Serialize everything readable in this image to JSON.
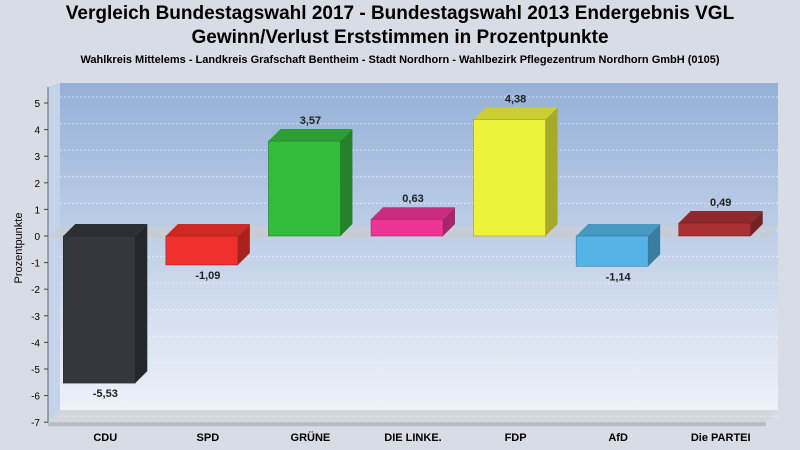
{
  "header": {
    "title_line1": "Vergleich Bundestagswahl 2017 - Bundestagswahl 2013 Endergebnis VGL",
    "title_line2": "Gewinn/Verlust Erststimmen in Prozentpunkte",
    "subtitle": "Wahlkreis Mittelems - Landkreis Grafschaft Bentheim - Stadt Nordhorn - Wahlbezirk Pflegezentrum Nordhorn GmbH (0105)"
  },
  "chart_data": {
    "type": "bar",
    "title": "Vergleich Bundestagswahl 2017 - Bundestagswahl 2013 Endergebnis VGL",
    "subtitle": "Gewinn/Verlust Erststimmen in Prozentpunkte",
    "xlabel": "",
    "ylabel": "Prozentpunkte",
    "ylim": [
      -7,
      5
    ],
    "yticks": [
      5,
      4,
      3,
      2,
      1,
      0,
      -1,
      -2,
      -3,
      -4,
      -5,
      -6,
      -7
    ],
    "grid": true,
    "categories": [
      "CDU",
      "SPD",
      "GRÜNE",
      "DIE LINKE.",
      "FDP",
      "AfD",
      "Die PARTEI"
    ],
    "values": [
      -5.53,
      -1.09,
      3.57,
      0.63,
      4.38,
      -1.14,
      0.49
    ],
    "value_labels": [
      "-5,53",
      "-1,09",
      "3,57",
      "0,63",
      "4,38",
      "-1,14",
      "0,49"
    ],
    "colors": [
      "#34373d",
      "#f0302c",
      "#33bb3c",
      "#ee3596",
      "#eef23a",
      "#55b3e6",
      "#a93035"
    ]
  }
}
